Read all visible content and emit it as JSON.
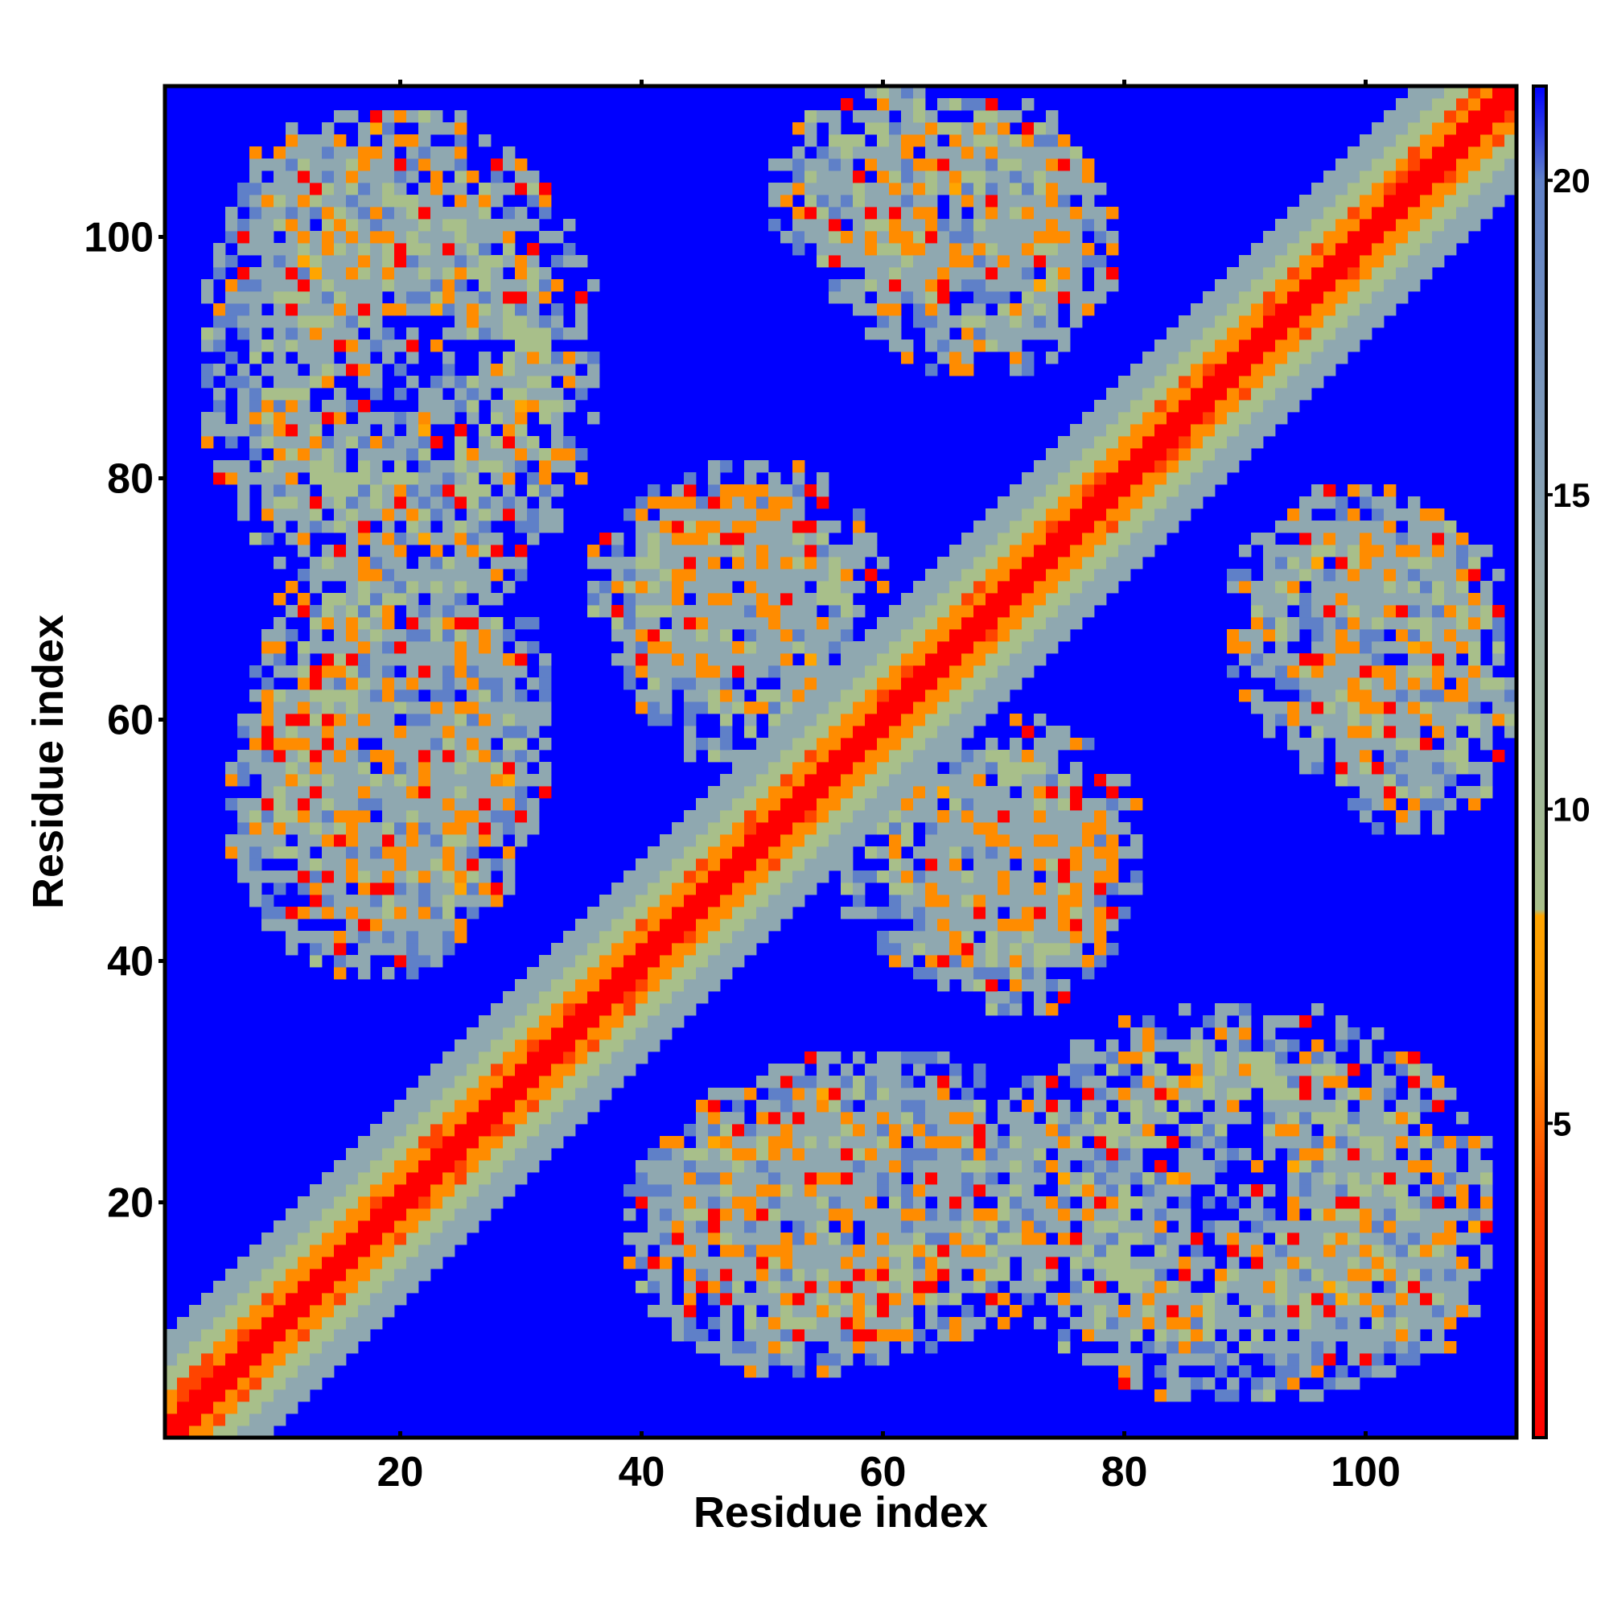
{
  "chart_data": {
    "type": "heatmap",
    "title": "",
    "xlabel": "Residue index",
    "ylabel": "Residue index",
    "n_residues": 112,
    "xlim": [
      1,
      112
    ],
    "ylim": [
      1,
      112
    ],
    "x_ticks": [
      20,
      40,
      60,
      80,
      100
    ],
    "y_ticks": [
      20,
      40,
      60,
      80,
      100
    ],
    "colorbar": {
      "ticks": [
        5,
        10,
        15,
        20
      ],
      "range": [
        0,
        21.5
      ],
      "stops": [
        {
          "value": 0,
          "color": "#ff0000"
        },
        {
          "value": 4,
          "color": "#ff4400"
        },
        {
          "value": 6,
          "color": "#ff8c00"
        },
        {
          "value": 8.3,
          "color": "#ffa500"
        },
        {
          "value": 8.4,
          "color": "#a8bf8a"
        },
        {
          "value": 14,
          "color": "#8fa8b0"
        },
        {
          "value": 20,
          "color": "#5f80c8"
        },
        {
          "value": 21.5,
          "color": "#0000ff"
        }
      ]
    },
    "background_color": "#0000ff",
    "contact_regions": [
      {
        "x": [
          3,
          37
        ],
        "y": [
          68,
          111
        ],
        "description": "upper-left block"
      },
      {
        "x": [
          8,
          33
        ],
        "y": [
          40,
          80
        ]
      },
      {
        "x": [
          38,
          61
        ],
        "y": [
          55,
          82
        ]
      },
      {
        "x": [
          50,
          78
        ],
        "y": [
          95,
          113
        ]
      },
      {
        "x": [
          38,
          70
        ],
        "y": [
          5,
          30
        ]
      },
      {
        "x": [
          62,
          80
        ],
        "y": [
          35,
          55
        ]
      },
      {
        "x": [
          88,
          110
        ],
        "y": [
          55,
          80
        ]
      },
      {
        "x": [
          90,
          110
        ],
        "y": [
          5,
          25
        ]
      }
    ]
  }
}
